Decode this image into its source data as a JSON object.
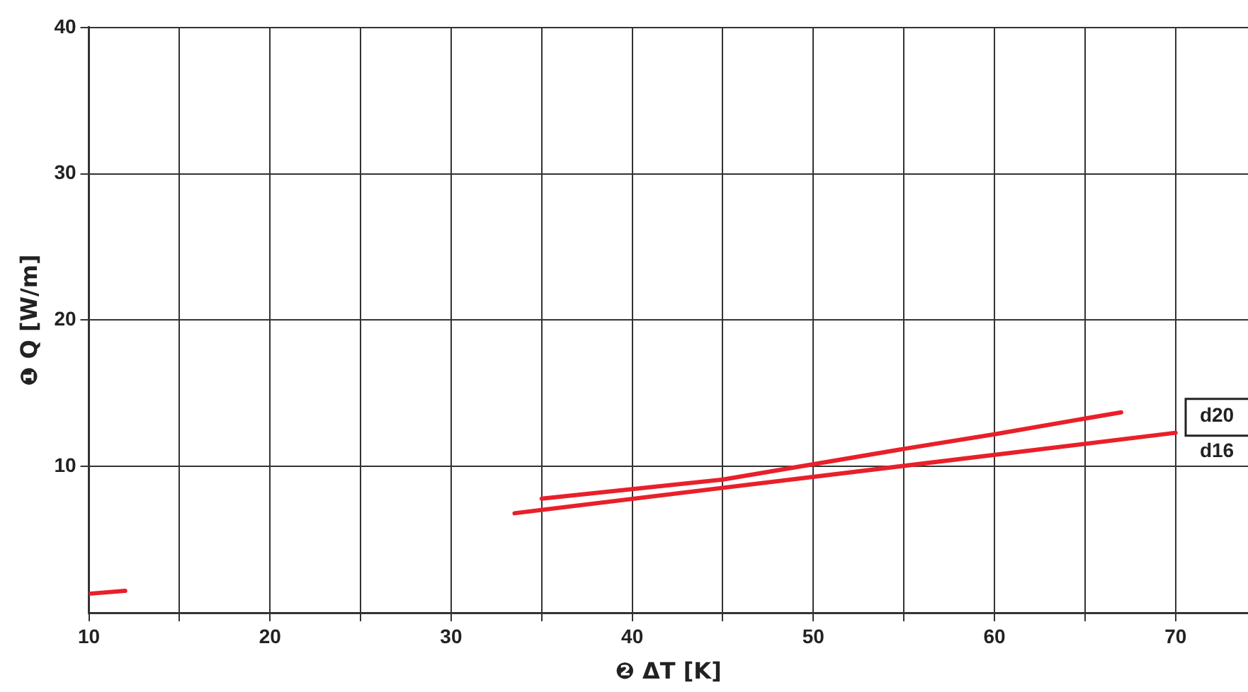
{
  "chart_data": {
    "type": "line",
    "xlabel": "❷ ΔT [K]",
    "ylabel": "❶ Q [W/m]",
    "xlim": [
      10,
      74
    ],
    "xticks": [
      10,
      {
        "value": 15,
        "label": null
      },
      20,
      {
        "value": 25,
        "label": null
      },
      30,
      {
        "value": 35,
        "label": null
      },
      40,
      {
        "value": 45,
        "label": null
      },
      50,
      {
        "value": 55,
        "label": null
      },
      60,
      {
        "value": 65,
        "label": null
      },
      70
    ],
    "ylim": [
      0,
      40
    ],
    "yticks": [
      10,
      20,
      30,
      40
    ],
    "grid": true,
    "legend": false,
    "marker": "none",
    "line_style": "solid",
    "series": [
      {
        "name": "d20",
        "color": "#e8202a",
        "x": [
          35,
          45,
          55,
          60,
          67
        ],
        "values": [
          7.8,
          9.1,
          11.2,
          12.2,
          13.7
        ]
      },
      {
        "name": "d16",
        "color": "#e8202a",
        "x": [
          10,
          12,
          20,
          33.5,
          70
        ],
        "values": [
          1.3,
          1.5,
          null,
          6.8,
          12.3
        ]
      }
    ]
  }
}
